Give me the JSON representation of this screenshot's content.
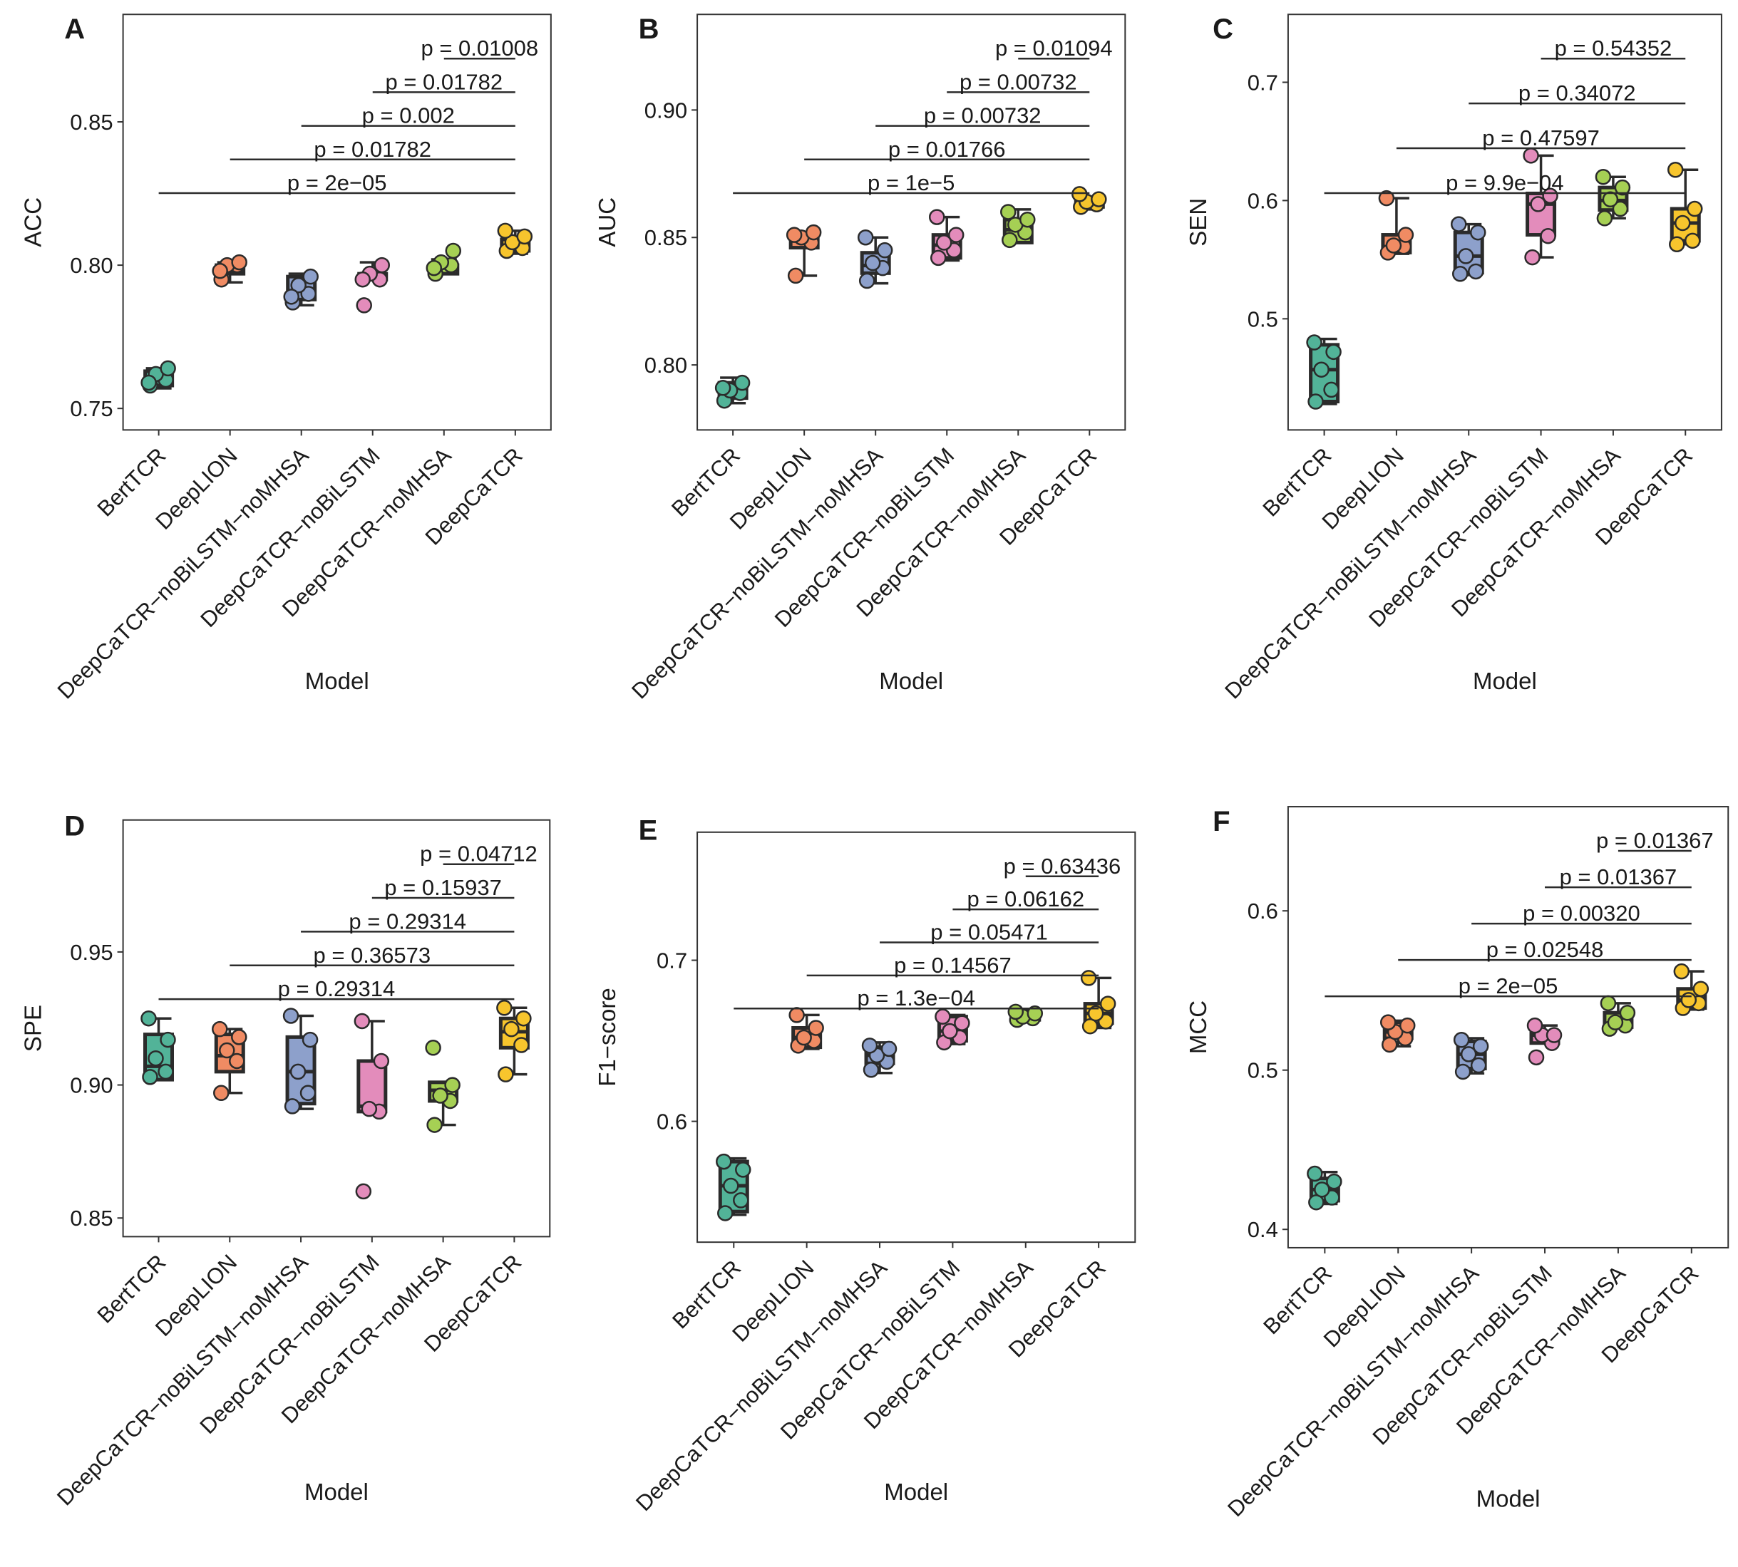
{
  "chart_data": [
    {
      "panel": "A",
      "type": "boxplot",
      "ylabel": "ACC",
      "xlabel": "Model",
      "categories": [
        "BertTCR",
        "DeepLION",
        "DeepCaTCR−noBiLSTM−noMHSA",
        "DeepCaTCR−noBiLSTM",
        "DeepCaTCR−noMHSA",
        "DeepCaTCR"
      ],
      "ylim": [
        0.7425,
        0.8875
      ],
      "yticks": [
        0.75,
        0.8,
        0.85
      ],
      "ytick_labels": [
        "0.75",
        "0.80",
        "0.85"
      ],
      "boxes": [
        {
          "min": 0.757,
          "q1": 0.758,
          "median": 0.76,
          "q3": 0.763,
          "max": 0.764
        },
        {
          "min": 0.794,
          "q1": 0.797,
          "median": 0.798,
          "q3": 0.8,
          "max": 0.801
        },
        {
          "min": 0.786,
          "q1": 0.788,
          "median": 0.791,
          "q3": 0.796,
          "max": 0.797
        },
        {
          "min": 0.795,
          "q1": 0.795,
          "median": 0.795,
          "q3": 0.797,
          "max": 0.801
        },
        {
          "min": 0.797,
          "q1": 0.797,
          "median": 0.799,
          "q3": 0.8,
          "max": 0.802
        },
        {
          "min": 0.804,
          "q1": 0.805,
          "median": 0.807,
          "q3": 0.809,
          "max": 0.812
        }
      ],
      "points": [
        [
          0.758,
          0.76,
          0.762,
          0.764,
          0.759
        ],
        [
          0.795,
          0.8,
          0.8,
          0.801,
          0.798
        ],
        [
          0.787,
          0.79,
          0.793,
          0.796,
          0.789
        ],
        [
          0.786,
          0.795,
          0.797,
          0.8,
          0.795
        ],
        [
          0.797,
          0.8,
          0.801,
          0.805,
          0.799
        ],
        [
          0.805,
          0.806,
          0.808,
          0.81,
          0.812
        ]
      ],
      "comparisons": [
        {
          "from": 1,
          "to": 6,
          "label": "p = 2e−05"
        },
        {
          "from": 2,
          "to": 6,
          "label": "p = 0.01782"
        },
        {
          "from": 3,
          "to": 6,
          "label": "p = 0.002"
        },
        {
          "from": 4,
          "to": 6,
          "label": "p = 0.01782"
        },
        {
          "from": 5,
          "to": 6,
          "label": "p = 0.01008"
        }
      ]
    },
    {
      "panel": "B",
      "type": "boxplot",
      "ylabel": "AUC",
      "xlabel": "Model",
      "categories": [
        "BertTCR",
        "DeepLION",
        "DeepCaTCR−noBiLSTM−noMHSA",
        "DeepCaTCR−noBiLSTM",
        "DeepCaTCR−noMHSA",
        "DeepCaTCR"
      ],
      "ylim": [
        0.7745,
        0.9375
      ],
      "yticks": [
        0.8,
        0.85,
        0.9
      ],
      "ytick_labels": [
        "0.80",
        "0.85",
        "0.90"
      ],
      "boxes": [
        {
          "min": 0.785,
          "q1": 0.787,
          "median": 0.79,
          "q3": 0.793,
          "max": 0.795
        },
        {
          "min": 0.835,
          "q1": 0.846,
          "median": 0.849,
          "q3": 0.851,
          "max": 0.852
        },
        {
          "min": 0.832,
          "q1": 0.836,
          "median": 0.839,
          "q3": 0.844,
          "max": 0.85
        },
        {
          "min": 0.841,
          "q1": 0.842,
          "median": 0.847,
          "q3": 0.851,
          "max": 0.858
        },
        {
          "min": 0.848,
          "q1": 0.848,
          "median": 0.853,
          "q3": 0.857,
          "max": 0.861
        },
        {
          "min": 0.861,
          "q1": 0.862,
          "median": 0.863,
          "q3": 0.865,
          "max": 0.866
        }
      ],
      "points": [
        [
          0.786,
          0.789,
          0.79,
          0.793,
          0.791
        ],
        [
          0.835,
          0.848,
          0.85,
          0.852,
          0.851
        ],
        [
          0.833,
          0.838,
          0.84,
          0.845,
          0.85
        ],
        [
          0.842,
          0.845,
          0.848,
          0.851,
          0.858
        ],
        [
          0.849,
          0.852,
          0.855,
          0.857,
          0.86
        ],
        [
          0.862,
          0.863,
          0.864,
          0.865,
          0.867
        ]
      ],
      "comparisons": [
        {
          "from": 1,
          "to": 6,
          "label": "p = 1e−5"
        },
        {
          "from": 2,
          "to": 6,
          "label": "p = 0.01766"
        },
        {
          "from": 3,
          "to": 6,
          "label": "p = 0.00732"
        },
        {
          "from": 4,
          "to": 6,
          "label": "p = 0.00732"
        },
        {
          "from": 5,
          "to": 6,
          "label": "p = 0.01094"
        }
      ]
    },
    {
      "panel": "C",
      "type": "boxplot",
      "ylabel": "SEN",
      "xlabel": "Model",
      "categories": [
        "BertTCR",
        "DeepLION",
        "DeepCaTCR−noBiLSTM−noMHSA",
        "DeepCaTCR−noBiLSTM",
        "DeepCaTCR−noMHSA",
        "DeepCaTCR"
      ],
      "ylim": [
        0.406,
        0.7574
      ],
      "yticks": [
        0.5,
        0.6,
        0.7
      ],
      "ytick_labels": [
        "0.5",
        "0.6",
        "0.7"
      ],
      "boxes": [
        {
          "min": 0.428,
          "q1": 0.43,
          "median": 0.457,
          "q3": 0.478,
          "max": 0.483
        },
        {
          "min": 0.555,
          "q1": 0.556,
          "median": 0.561,
          "q3": 0.571,
          "max": 0.602
        },
        {
          "min": 0.537,
          "q1": 0.539,
          "median": 0.553,
          "q3": 0.573,
          "max": 0.58
        },
        {
          "min": 0.552,
          "q1": 0.571,
          "median": 0.597,
          "q3": 0.606,
          "max": 0.638
        },
        {
          "min": 0.585,
          "q1": 0.592,
          "median": 0.6,
          "q3": 0.611,
          "max": 0.62
        },
        {
          "min": 0.563,
          "q1": 0.566,
          "median": 0.581,
          "q3": 0.593,
          "max": 0.626
        }
      ],
      "points": [
        [
          0.43,
          0.44,
          0.457,
          0.472,
          0.48
        ],
        [
          0.556,
          0.561,
          0.562,
          0.571,
          0.602
        ],
        [
          0.538,
          0.54,
          0.553,
          0.573,
          0.58
        ],
        [
          0.552,
          0.57,
          0.597,
          0.604,
          0.638
        ],
        [
          0.585,
          0.593,
          0.601,
          0.611,
          0.62
        ],
        [
          0.563,
          0.566,
          0.581,
          0.593,
          0.626
        ]
      ],
      "comparisons": [
        {
          "from": 1,
          "to": 6,
          "label": "p = 9.9e−04"
        },
        {
          "from": 2,
          "to": 6,
          "label": "p = 0.47597"
        },
        {
          "from": 3,
          "to": 6,
          "label": "p = 0.34072"
        },
        {
          "from": 4,
          "to": 6,
          "label": "p = 0.54352"
        }
      ]
    },
    {
      "panel": "D",
      "type": "boxplot",
      "ylabel": "SPE",
      "xlabel": "Model",
      "categories": [
        "BertTCR",
        "DeepLION",
        "DeepCaTCR−noBiLSTM−noMHSA",
        "DeepCaTCR−noBiLSTM",
        "DeepCaTCR−noMHSA",
        "DeepCaTCR"
      ],
      "ylim": [
        0.843,
        0.9996
      ],
      "yticks": [
        0.85,
        0.9,
        0.95
      ],
      "ytick_labels": [
        "0.85",
        "0.90",
        "0.95"
      ],
      "boxes": [
        {
          "min": 0.902,
          "q1": 0.902,
          "median": 0.907,
          "q3": 0.919,
          "max": 0.925
        },
        {
          "min": 0.897,
          "q1": 0.905,
          "median": 0.911,
          "q3": 0.919,
          "max": 0.921
        },
        {
          "min": 0.891,
          "q1": 0.893,
          "median": 0.905,
          "q3": 0.918,
          "max": 0.926
        },
        {
          "min": 0.89,
          "q1": 0.89,
          "median": 0.892,
          "q3": 0.909,
          "max": 0.924
        },
        {
          "min": 0.885,
          "q1": 0.894,
          "median": 0.898,
          "q3": 0.901,
          "max": 0.901
        },
        {
          "min": 0.904,
          "q1": 0.914,
          "median": 0.92,
          "q3": 0.925,
          "max": 0.929
        }
      ],
      "points": [
        [
          0.903,
          0.905,
          0.91,
          0.917,
          0.925
        ],
        [
          0.897,
          0.909,
          0.913,
          0.918,
          0.921
        ],
        [
          0.892,
          0.897,
          0.905,
          0.917,
          0.926
        ],
        [
          0.86,
          0.89,
          0.891,
          0.909,
          0.924
        ],
        [
          0.885,
          0.894,
          0.896,
          0.9,
          0.914
        ],
        [
          0.904,
          0.915,
          0.921,
          0.925,
          0.929
        ]
      ],
      "comparisons": [
        {
          "from": 1,
          "to": 6,
          "label": "p = 0.29314"
        },
        {
          "from": 2,
          "to": 6,
          "label": "p = 0.36573"
        },
        {
          "from": 3,
          "to": 6,
          "label": "p = 0.29314"
        },
        {
          "from": 4,
          "to": 6,
          "label": "p = 0.15937"
        },
        {
          "from": 5,
          "to": 6,
          "label": "p = 0.04712"
        }
      ]
    },
    {
      "panel": "E",
      "type": "boxplot",
      "ylabel": "F1−score",
      "xlabel": "Model",
      "categories": [
        "BertTCR",
        "DeepLION",
        "DeepCaTCR−noBiLSTM−noMHSA",
        "DeepCaTCR−noBiLSTM",
        "DeepCaTCR−noMHSA",
        "DeepCaTCR"
      ],
      "ylim": [
        0.525,
        0.7795
      ],
      "yticks": [
        0.6,
        0.7
      ],
      "ytick_labels": [
        "0.6",
        "0.7"
      ],
      "boxes": [
        {
          "min": 0.542,
          "q1": 0.544,
          "median": 0.56,
          "q3": 0.575,
          "max": 0.577
        },
        {
          "min": 0.645,
          "q1": 0.646,
          "median": 0.652,
          "q3": 0.658,
          "max": 0.666
        },
        {
          "min": 0.63,
          "q1": 0.636,
          "median": 0.641,
          "q3": 0.646,
          "max": 0.649
        },
        {
          "min": 0.648,
          "q1": 0.65,
          "median": 0.656,
          "q3": 0.665,
          "max": 0.666
        },
        {
          "min": 0.662,
          "q1": 0.663,
          "median": 0.665,
          "q3": 0.668,
          "max": 0.669
        },
        {
          "min": 0.658,
          "q1": 0.661,
          "median": 0.667,
          "q3": 0.673,
          "max": 0.689
        }
      ],
      "points": [
        [
          0.543,
          0.551,
          0.56,
          0.57,
          0.575
        ],
        [
          0.647,
          0.65,
          0.652,
          0.658,
          0.666
        ],
        [
          0.632,
          0.637,
          0.641,
          0.645,
          0.647
        ],
        [
          0.649,
          0.652,
          0.656,
          0.661,
          0.665
        ],
        [
          0.663,
          0.664,
          0.665,
          0.667,
          0.668
        ],
        [
          0.659,
          0.662,
          0.667,
          0.673,
          0.689
        ]
      ],
      "comparisons": [
        {
          "from": 1,
          "to": 6,
          "label": "p = 1.3e−04"
        },
        {
          "from": 2,
          "to": 6,
          "label": "p = 0.14567"
        },
        {
          "from": 3,
          "to": 6,
          "label": "p = 0.05471"
        },
        {
          "from": 4,
          "to": 6,
          "label": "p = 0.06162"
        },
        {
          "from": 5,
          "to": 6,
          "label": "p = 0.63436"
        }
      ]
    },
    {
      "panel": "F",
      "type": "boxplot",
      "ylabel": "MCC",
      "xlabel": "Model",
      "categories": [
        "BertTCR",
        "DeepLION",
        "DeepCaTCR−noBiLSTM−noMHSA",
        "DeepCaTCR−noBiLSTM",
        "DeepCaTCR−noMHSA",
        "DeepCaTCR"
      ],
      "ylim": [
        0.3885,
        0.6654
      ],
      "yticks": [
        0.4,
        0.5,
        0.6
      ],
      "ytick_labels": [
        "0.4",
        "0.5",
        "0.6"
      ],
      "boxes": [
        {
          "min": 0.416,
          "q1": 0.418,
          "median": 0.425,
          "q3": 0.432,
          "max": 0.436
        },
        {
          "min": 0.515,
          "q1": 0.52,
          "median": 0.524,
          "q3": 0.53,
          "max": 0.531
        },
        {
          "min": 0.498,
          "q1": 0.501,
          "median": 0.51,
          "q3": 0.518,
          "max": 0.52
        },
        {
          "min": 0.517,
          "q1": 0.517,
          "median": 0.522,
          "q3": 0.523,
          "max": 0.528
        },
        {
          "min": 0.526,
          "q1": 0.527,
          "median": 0.529,
          "q3": 0.536,
          "max": 0.542
        },
        {
          "min": 0.538,
          "q1": 0.539,
          "median": 0.544,
          "q3": 0.551,
          "max": 0.562
        }
      ],
      "points": [
        [
          0.417,
          0.42,
          0.425,
          0.43,
          0.435
        ],
        [
          0.516,
          0.52,
          0.524,
          0.528,
          0.53
        ],
        [
          0.499,
          0.503,
          0.51,
          0.515,
          0.519
        ],
        [
          0.508,
          0.517,
          0.522,
          0.522,
          0.528
        ],
        [
          0.526,
          0.528,
          0.53,
          0.536,
          0.542
        ],
        [
          0.539,
          0.542,
          0.544,
          0.551,
          0.562
        ]
      ],
      "comparisons": [
        {
          "from": 1,
          "to": 6,
          "label": "p = 2e−05"
        },
        {
          "from": 2,
          "to": 6,
          "label": "p = 0.02548"
        },
        {
          "from": 3,
          "to": 6,
          "label": "p = 0.00320"
        },
        {
          "from": 4,
          "to": 6,
          "label": "p = 0.01367"
        },
        {
          "from": 5,
          "to": 6,
          "label": "p = 0.01367"
        }
      ]
    }
  ],
  "colors": {
    "fills": [
      "#52b398",
      "#f08b63",
      "#8da0cb",
      "#e38cbb",
      "#a6d054",
      "#f7c52d"
    ],
    "outline": "#2b2b2b",
    "axis": "#333333",
    "text": "#1a1a1a",
    "background": "#ffffff"
  }
}
